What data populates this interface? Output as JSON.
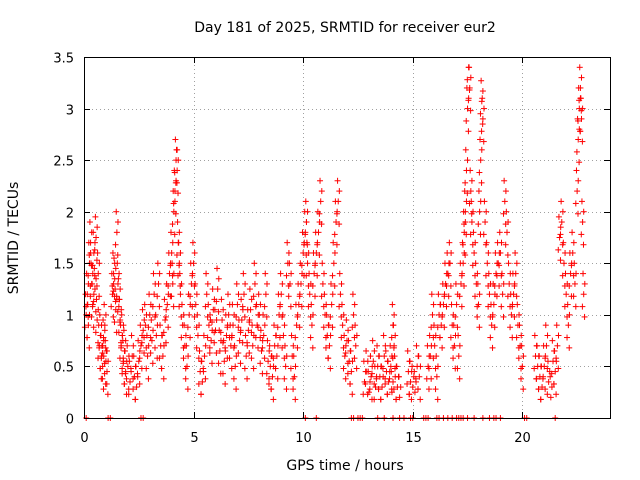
{
  "chart_data": {
    "type": "scatter",
    "title": "Day 181 of 2025, SRMTID for receiver eur2",
    "xlabel": "GPS time / hours",
    "ylabel": "SRMTID / TECUs",
    "xlim": [
      0,
      24
    ],
    "ylim": [
      0,
      3.5
    ],
    "x_ticks": [
      0,
      5,
      10,
      15,
      20
    ],
    "x_tick_labels": [
      "0",
      "5",
      "10",
      "15",
      "20"
    ],
    "y_ticks": [
      0,
      0.5,
      1,
      1.5,
      2,
      2.5,
      3,
      3.5
    ],
    "y_tick_labels": [
      "0",
      "0.5",
      "1",
      "1.5",
      "2",
      "2.5",
      "3",
      "3.5"
    ],
    "grid": true,
    "marker": "+",
    "color": "#ff0000",
    "series": [
      {
        "name": "SRMTID",
        "points": [
          [
            0.1,
            1.0
          ],
          [
            0.15,
            1.2
          ],
          [
            0.2,
            0.9
          ],
          [
            0.25,
            1.5
          ],
          [
            0.3,
            1.7
          ],
          [
            0.35,
            1.3
          ],
          [
            0.4,
            1.1
          ],
          [
            0.45,
            1.6
          ],
          [
            0.5,
            1.25
          ],
          [
            0.55,
            1.75
          ],
          [
            0.6,
            0.95
          ],
          [
            0.65,
            1.4
          ],
          [
            0.7,
            0.7
          ],
          [
            0.75,
            0.8
          ],
          [
            0.8,
            0.6
          ],
          [
            0.85,
            0.5
          ],
          [
            0.9,
            0.75
          ],
          [
            0.95,
            0.9
          ],
          [
            1.0,
            0.55
          ],
          [
            1.05,
            0.45
          ],
          [
            1.3,
            1.2
          ],
          [
            1.35,
            1.4
          ],
          [
            1.4,
            1.35
          ],
          [
            1.45,
            1.05
          ],
          [
            1.5,
            1.8
          ],
          [
            1.55,
            1.3
          ],
          [
            1.6,
            1.15
          ],
          [
            1.65,
            0.95
          ],
          [
            1.7,
            0.7
          ],
          [
            1.75,
            0.8
          ],
          [
            1.8,
            0.55
          ],
          [
            1.85,
            0.65
          ],
          [
            1.9,
            0.45
          ],
          [
            2.0,
            0.5
          ],
          [
            2.1,
            0.35
          ],
          [
            2.2,
            0.6
          ],
          [
            2.3,
            0.4
          ],
          [
            2.4,
            0.3
          ],
          [
            2.5,
            0.55
          ],
          [
            2.6,
            0.7
          ],
          [
            2.7,
            0.85
          ],
          [
            2.8,
            0.9
          ],
          [
            2.9,
            0.6
          ],
          [
            3.0,
            1.0
          ],
          [
            3.1,
            0.75
          ],
          [
            3.2,
            1.2
          ],
          [
            3.3,
            0.8
          ],
          [
            3.4,
            1.3
          ],
          [
            3.5,
            0.7
          ],
          [
            3.6,
            0.6
          ],
          [
            3.7,
            0.95
          ],
          [
            3.8,
            1.1
          ],
          [
            3.9,
            1.4
          ],
          [
            4.0,
            1.6
          ],
          [
            4.05,
            1.3
          ],
          [
            4.1,
            2.0
          ],
          [
            4.15,
            2.2
          ],
          [
            4.2,
            2.5
          ],
          [
            4.25,
            2.4
          ],
          [
            4.3,
            1.7
          ],
          [
            4.35,
            1.5
          ],
          [
            4.4,
            1.2
          ],
          [
            4.5,
            0.9
          ],
          [
            4.6,
            0.7
          ],
          [
            4.7,
            0.5
          ],
          [
            4.8,
            1.0
          ],
          [
            4.9,
            1.3
          ],
          [
            5.0,
            1.5
          ],
          [
            5.1,
            1.1
          ],
          [
            5.2,
            0.8
          ],
          [
            5.3,
            0.45
          ],
          [
            5.4,
            0.35
          ],
          [
            5.5,
            0.6
          ],
          [
            5.6,
            1.2
          ],
          [
            5.7,
            0.9
          ],
          [
            5.8,
            0.75
          ],
          [
            5.9,
            1.05
          ],
          [
            6.0,
            0.85
          ],
          [
            6.1,
            1.25
          ],
          [
            6.2,
            0.65
          ],
          [
            6.3,
            0.95
          ],
          [
            6.4,
            0.55
          ],
          [
            6.5,
            0.8
          ],
          [
            6.6,
            1.0
          ],
          [
            6.7,
            0.7
          ],
          [
            6.8,
            0.9
          ],
          [
            6.9,
            0.5
          ],
          [
            7.0,
            1.1
          ],
          [
            7.1,
            0.75
          ],
          [
            7.2,
            0.95
          ],
          [
            7.3,
            1.2
          ],
          [
            7.4,
            0.6
          ],
          [
            7.5,
            0.85
          ],
          [
            7.6,
            1.05
          ],
          [
            7.7,
            0.7
          ],
          [
            7.8,
            1.3
          ],
          [
            7.9,
            0.9
          ],
          [
            8.0,
            1.0
          ],
          [
            8.1,
            0.65
          ],
          [
            8.2,
            0.8
          ],
          [
            8.3,
            1.2
          ],
          [
            8.4,
            0.55
          ],
          [
            8.5,
            0.5
          ],
          [
            8.6,
            0.4
          ],
          [
            8.7,
            0.7
          ],
          [
            8.8,
            0.6
          ],
          [
            8.9,
            1.0
          ],
          [
            9.0,
            1.2
          ],
          [
            9.1,
            0.8
          ],
          [
            9.2,
            0.5
          ],
          [
            9.3,
            1.5
          ],
          [
            9.4,
            1.3
          ],
          [
            9.5,
            0.6
          ],
          [
            9.6,
            0.4
          ],
          [
            9.7,
            0.9
          ],
          [
            9.8,
            1.1
          ],
          [
            9.9,
            1.3
          ],
          [
            10.0,
            1.6
          ],
          [
            10.1,
            1.8
          ],
          [
            10.15,
            1.9
          ],
          [
            10.2,
            1.5
          ],
          [
            10.3,
            1.2
          ],
          [
            10.4,
            0.9
          ],
          [
            10.5,
            1.4
          ],
          [
            10.6,
            1.6
          ],
          [
            10.7,
            1.8
          ],
          [
            10.8,
            2.1
          ],
          [
            10.9,
            1.3
          ],
          [
            11.0,
            1.0
          ],
          [
            11.1,
            0.8
          ],
          [
            11.2,
            0.7
          ],
          [
            11.3,
            1.1
          ],
          [
            11.4,
            1.5
          ],
          [
            11.5,
            1.9
          ],
          [
            11.6,
            2.1
          ],
          [
            11.7,
            1.2
          ],
          [
            11.8,
            0.9
          ],
          [
            11.9,
            0.6
          ],
          [
            12.0,
            0.75
          ],
          [
            12.1,
            0.55
          ],
          [
            12.2,
            0.45
          ],
          [
            12.3,
            1.0
          ],
          [
            12.4,
            0.7
          ],
          [
            12.8,
            0.35
          ],
          [
            12.9,
            0.45
          ],
          [
            13.0,
            0.25
          ],
          [
            13.1,
            0.4
          ],
          [
            13.2,
            0.55
          ],
          [
            13.3,
            0.3
          ],
          [
            13.4,
            0.5
          ],
          [
            13.5,
            0.4
          ],
          [
            13.6,
            0.3
          ],
          [
            13.7,
            0.6
          ],
          [
            13.8,
            0.45
          ],
          [
            13.9,
            0.35
          ],
          [
            14.0,
            0.5
          ],
          [
            14.05,
            0.25
          ],
          [
            14.1,
            0.9
          ],
          [
            14.15,
            0.7
          ],
          [
            14.2,
            0.4
          ],
          [
            14.3,
            0.3
          ],
          [
            14.4,
            0.2
          ],
          [
            14.8,
            0.45
          ],
          [
            14.9,
            0.35
          ],
          [
            15.0,
            0.3
          ],
          [
            15.1,
            0.25
          ],
          [
            15.2,
            0.5
          ],
          [
            15.3,
            0.4
          ],
          [
            15.7,
            0.5
          ],
          [
            15.8,
            0.6
          ],
          [
            15.9,
            1.0
          ],
          [
            16.0,
            0.7
          ],
          [
            16.1,
            0.4
          ],
          [
            16.2,
            1.0
          ],
          [
            16.3,
            0.9
          ],
          [
            16.4,
            1.1
          ],
          [
            16.5,
            1.3
          ],
          [
            16.6,
            1.4
          ],
          [
            16.7,
            1.5
          ],
          [
            16.8,
            0.9
          ],
          [
            16.9,
            0.7
          ],
          [
            17.0,
            1.1
          ],
          [
            17.1,
            0.6
          ],
          [
            17.2,
            1.3
          ],
          [
            17.3,
            1.5
          ],
          [
            17.35,
            1.8
          ],
          [
            17.4,
            2.0
          ],
          [
            17.45,
            2.4
          ],
          [
            17.5,
            3.0
          ],
          [
            17.55,
            3.4
          ],
          [
            17.6,
            3.2
          ],
          [
            17.65,
            2.2
          ],
          [
            17.7,
            1.9
          ],
          [
            17.8,
            1.6
          ],
          [
            17.9,
            1.3
          ],
          [
            18.0,
            1.1
          ],
          [
            18.05,
            2.0
          ],
          [
            18.1,
            2.5
          ],
          [
            18.15,
            3.07
          ],
          [
            18.2,
            2.9
          ],
          [
            18.3,
            1.9
          ],
          [
            18.4,
            1.5
          ],
          [
            18.5,
            1.2
          ],
          [
            18.6,
            0.9
          ],
          [
            18.7,
            1.1
          ],
          [
            18.8,
            1.4
          ],
          [
            18.9,
            1.5
          ],
          [
            19.0,
            1.6
          ],
          [
            19.1,
            1.2
          ],
          [
            19.2,
            2.1
          ],
          [
            19.3,
            1.8
          ],
          [
            19.4,
            1.3
          ],
          [
            19.5,
            1.0
          ],
          [
            19.6,
            1.2
          ],
          [
            19.7,
            1.4
          ],
          [
            19.8,
            0.9
          ],
          [
            19.9,
            0.7
          ],
          [
            20.0,
            0.5
          ],
          [
            20.6,
            0.6
          ],
          [
            20.7,
            0.5
          ],
          [
            20.8,
            0.4
          ],
          [
            20.9,
            0.3
          ],
          [
            21.0,
            0.5
          ],
          [
            21.1,
            0.7
          ],
          [
            21.2,
            0.35
          ],
          [
            21.3,
            0.2
          ],
          [
            21.4,
            0.55
          ],
          [
            21.5,
            0.45
          ],
          [
            21.6,
            0.7
          ],
          [
            21.7,
            1.75
          ],
          [
            21.8,
            1.9
          ],
          [
            21.9,
            1.5
          ],
          [
            22.0,
            1.2
          ],
          [
            22.1,
            0.9
          ],
          [
            22.2,
            1.4
          ],
          [
            22.3,
            1.6
          ],
          [
            22.4,
            1.3
          ],
          [
            22.5,
            2.2
          ],
          [
            22.55,
            2.7
          ],
          [
            22.6,
            3.0
          ],
          [
            22.65,
            3.2
          ],
          [
            22.7,
            2.9
          ],
          [
            22.75,
            1.9
          ],
          [
            22.8,
            1.2
          ]
        ],
        "zero_points": [
          0.1,
          1.1,
          1.2,
          2.6,
          2.7,
          10.1,
          10.6,
          12.2,
          12.3,
          12.5,
          12.6,
          12.7,
          13.4,
          13.7,
          14.1,
          14.4,
          14.6,
          14.9,
          15.0,
          15.5,
          15.6,
          15.7,
          16.1,
          16.2,
          16.4,
          16.6,
          16.8,
          17.0,
          17.1,
          17.2,
          17.3,
          17.5,
          17.8,
          18.2,
          18.5,
          18.7,
          18.8,
          19.0,
          20.1,
          20.2,
          21.5
        ]
      }
    ]
  }
}
